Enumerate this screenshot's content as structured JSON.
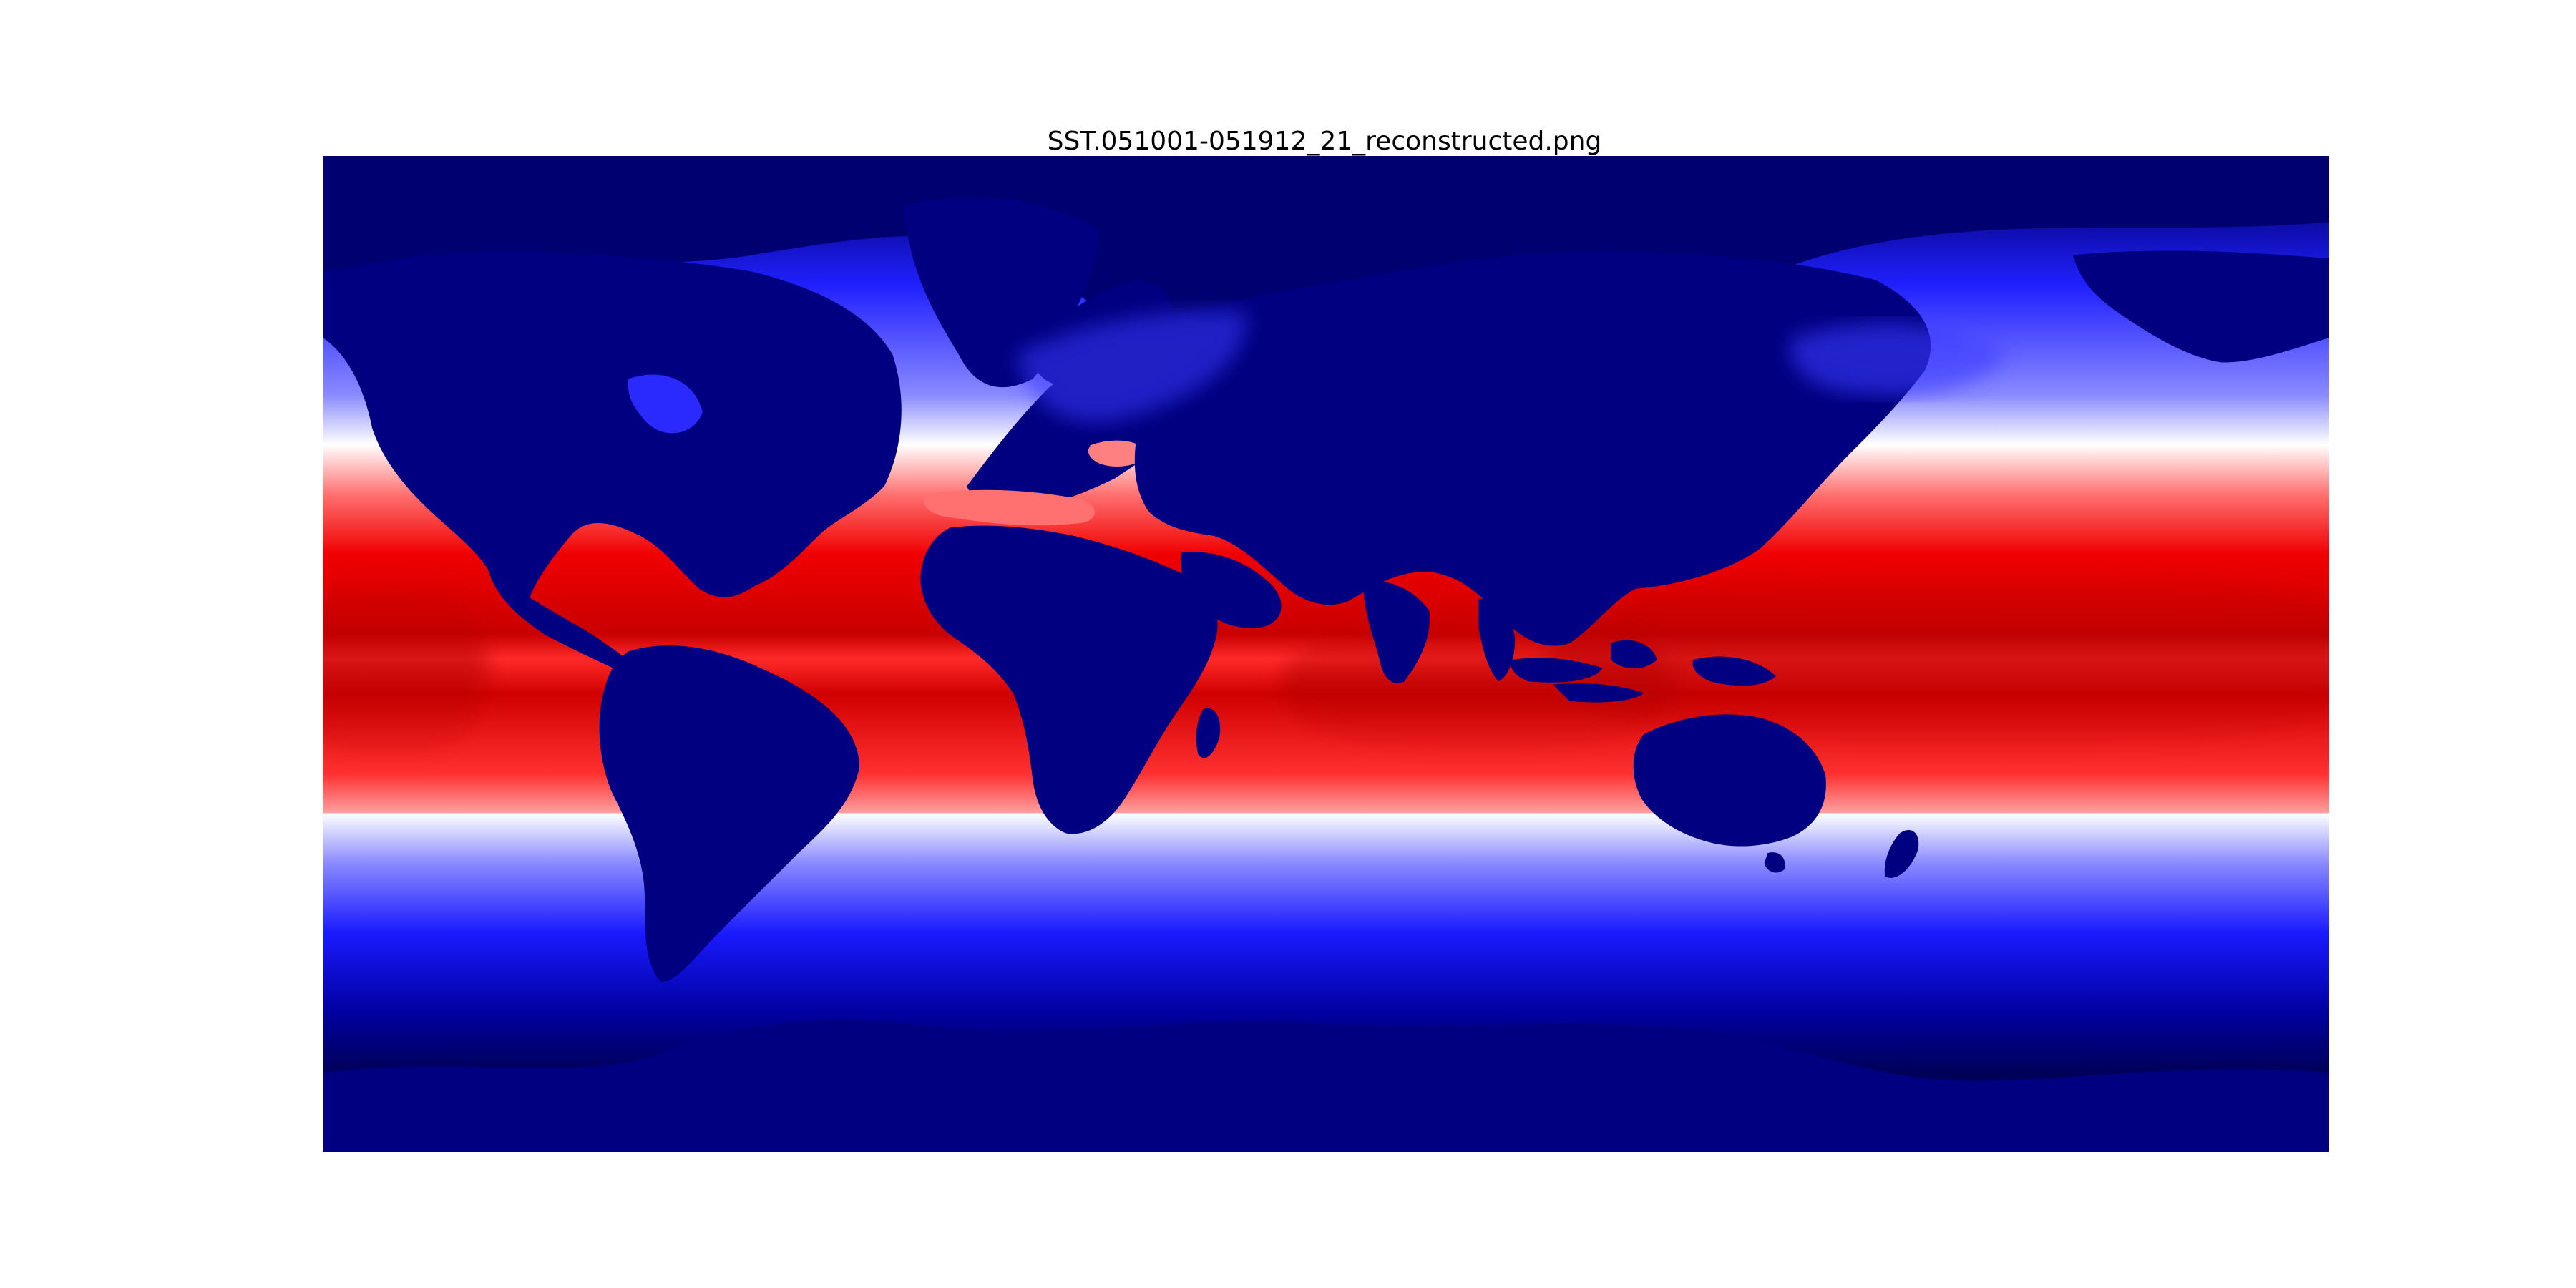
{
  "figure": {
    "title": "SST.051001-051912_21_reconstructed.png"
  },
  "map": {
    "projection": "equirectangular",
    "central_longitude": 0,
    "lon_range": [
      -180,
      180
    ],
    "lat_range": [
      -90,
      90
    ],
    "colormap": "seismic",
    "colors": {
      "land": "#000080",
      "cold_deep": "#000058",
      "cold": "#0000ff",
      "neutral": "#ffffff",
      "warm": "#ff1010",
      "hot": "#c00000"
    },
    "axes_visible": false
  }
}
